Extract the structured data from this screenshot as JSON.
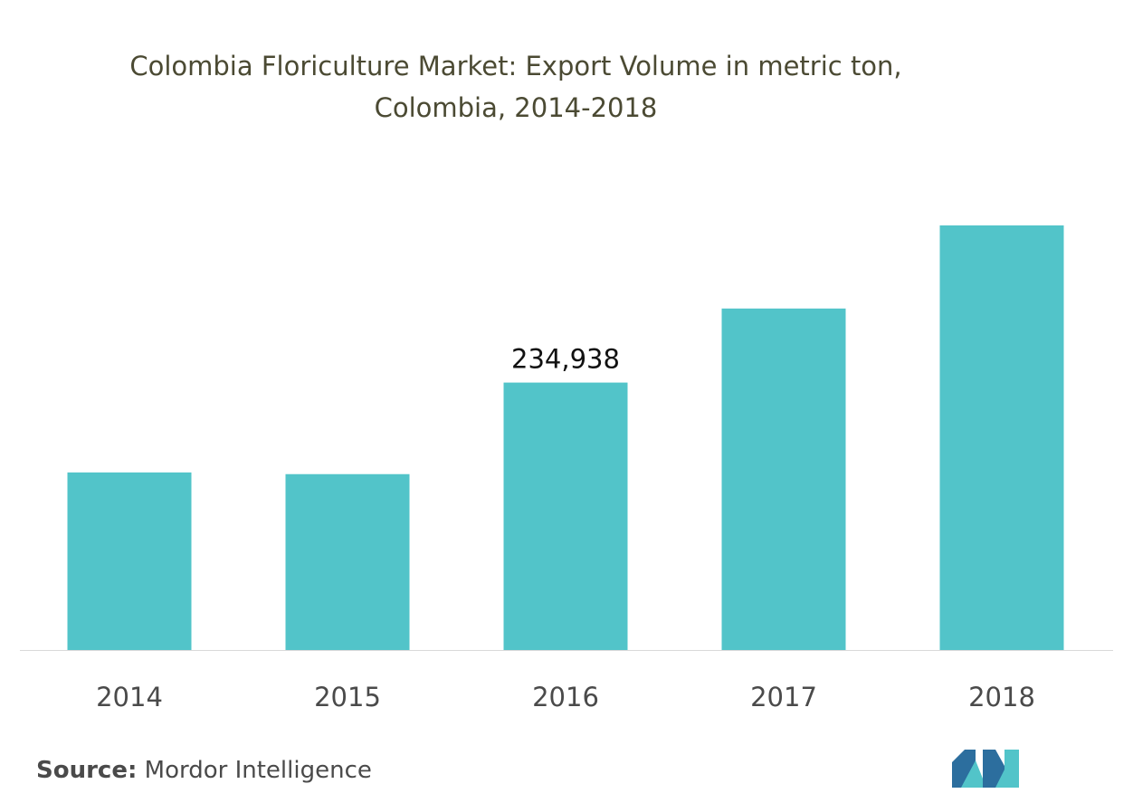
{
  "chart_data": {
    "type": "bar",
    "title_line1": "Colombia Floriculture Market: Export Volume in metric ton,",
    "title_line2": "Colombia, 2014-2018",
    "categories": [
      "2014",
      "2015",
      "2016",
      "2017",
      "2018"
    ],
    "values": [
      156000,
      154500,
      234938,
      300000,
      373000
    ],
    "data_labels": [
      "",
      "",
      "234,938",
      "",
      ""
    ],
    "xlabel": "",
    "ylabel": "",
    "ylim": [
      0,
      373000
    ],
    "grid": false,
    "legend": "none",
    "bar_color": "#52c4c9",
    "axis_color": "#d9d9d9",
    "title_color": "#4b4a33"
  },
  "source": {
    "label": "Source:",
    "text": "Mordor Intelligence"
  },
  "logo": {
    "icon": "mordor-intelligence-logo-icon",
    "colors": [
      "#2c6e9e",
      "#52c4c9"
    ]
  }
}
